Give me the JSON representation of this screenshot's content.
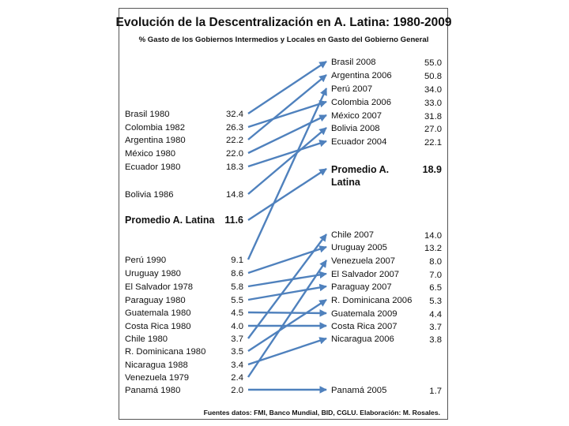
{
  "chart_data": {
    "type": "slope",
    "title": "Evolución de la Descentralización en A. Latina: 1980-2009",
    "subtitle": "% Gasto de los Gobiernos Intermedios y Locales en Gasto del Gobierno General",
    "source": "Fuentes datos: FMI, Banco Mundial, BID, CGLU. Elaboración: M. Rosales.",
    "arrow_color": "#4f81bd",
    "left": [
      {
        "label": "Brasil 1980",
        "value": "32.4"
      },
      {
        "label": "Colombia 1982",
        "value": "26.3"
      },
      {
        "label": "Argentina 1980",
        "value": "22.2"
      },
      {
        "label": "México 1980",
        "value": "22.0"
      },
      {
        "label": "Ecuador 1980",
        "value": "18.3"
      },
      {
        "label": "Bolivia 1986",
        "value": "14.8"
      },
      {
        "label": "Promedio A. Latina",
        "value": "11.6",
        "bold": true
      },
      {
        "label": "Perú 1990",
        "value": "9.1"
      },
      {
        "label": "Uruguay 1980",
        "value": "8.6"
      },
      {
        "label": "El Salvador 1978",
        "value": "5.8"
      },
      {
        "label": "Paraguay 1980",
        "value": "5.5"
      },
      {
        "label": "Guatemala 1980",
        "value": "4.5"
      },
      {
        "label": "Costa Rica 1980",
        "value": "4.0"
      },
      {
        "label": "Chile 1980",
        "value": "3.7"
      },
      {
        "label": "R. Dominicana 1980",
        "value": "3.5"
      },
      {
        "label": "Nicaragua 1988",
        "value": "3.4"
      },
      {
        "label": "Venezuela 1979",
        "value": "2.4"
      },
      {
        "label": "Panamá 1980",
        "value": "2.0"
      }
    ],
    "right": [
      {
        "label": "Brasil 2008",
        "value": "55.0"
      },
      {
        "label": "Argentina 2006",
        "value": "50.8"
      },
      {
        "label": "Perú 2007",
        "value": "34.0"
      },
      {
        "label": "Colombia 2006",
        "value": "33.0"
      },
      {
        "label": "México 2007",
        "value": "31.8"
      },
      {
        "label": "Bolivia 2008",
        "value": "27.0"
      },
      {
        "label": "Ecuador 2004",
        "value": "22.1"
      },
      {
        "label": "Promedio A. Latina",
        "value": "18.9",
        "bold": true
      },
      {
        "label": "Chile 2007",
        "value": "14.0"
      },
      {
        "label": "Uruguay 2005",
        "value": "13.2"
      },
      {
        "label": "Venezuela 2007",
        "value": "8.0"
      },
      {
        "label": "El Salvador 2007",
        "value": "7.0"
      },
      {
        "label": "Paraguay 2007",
        "value": "6.5"
      },
      {
        "label": "R. Dominicana 2006",
        "value": "5.3"
      },
      {
        "label": "Guatemala 2009",
        "value": "4.4"
      },
      {
        "label": "Costa Rica 2007",
        "value": "3.7"
      },
      {
        "label": "Nicaragua 2006",
        "value": "3.8"
      },
      {
        "label": "Panamá 2005",
        "value": "1.7"
      }
    ],
    "links": [
      [
        0,
        0
      ],
      [
        1,
        3
      ],
      [
        2,
        1
      ],
      [
        3,
        4
      ],
      [
        4,
        6
      ],
      [
        5,
        5
      ],
      [
        6,
        7
      ],
      [
        7,
        2
      ],
      [
        8,
        9
      ],
      [
        9,
        11
      ],
      [
        10,
        12
      ],
      [
        11,
        14
      ],
      [
        12,
        15
      ],
      [
        13,
        8
      ],
      [
        14,
        13
      ],
      [
        15,
        16
      ],
      [
        16,
        10
      ],
      [
        17,
        17
      ]
    ]
  }
}
